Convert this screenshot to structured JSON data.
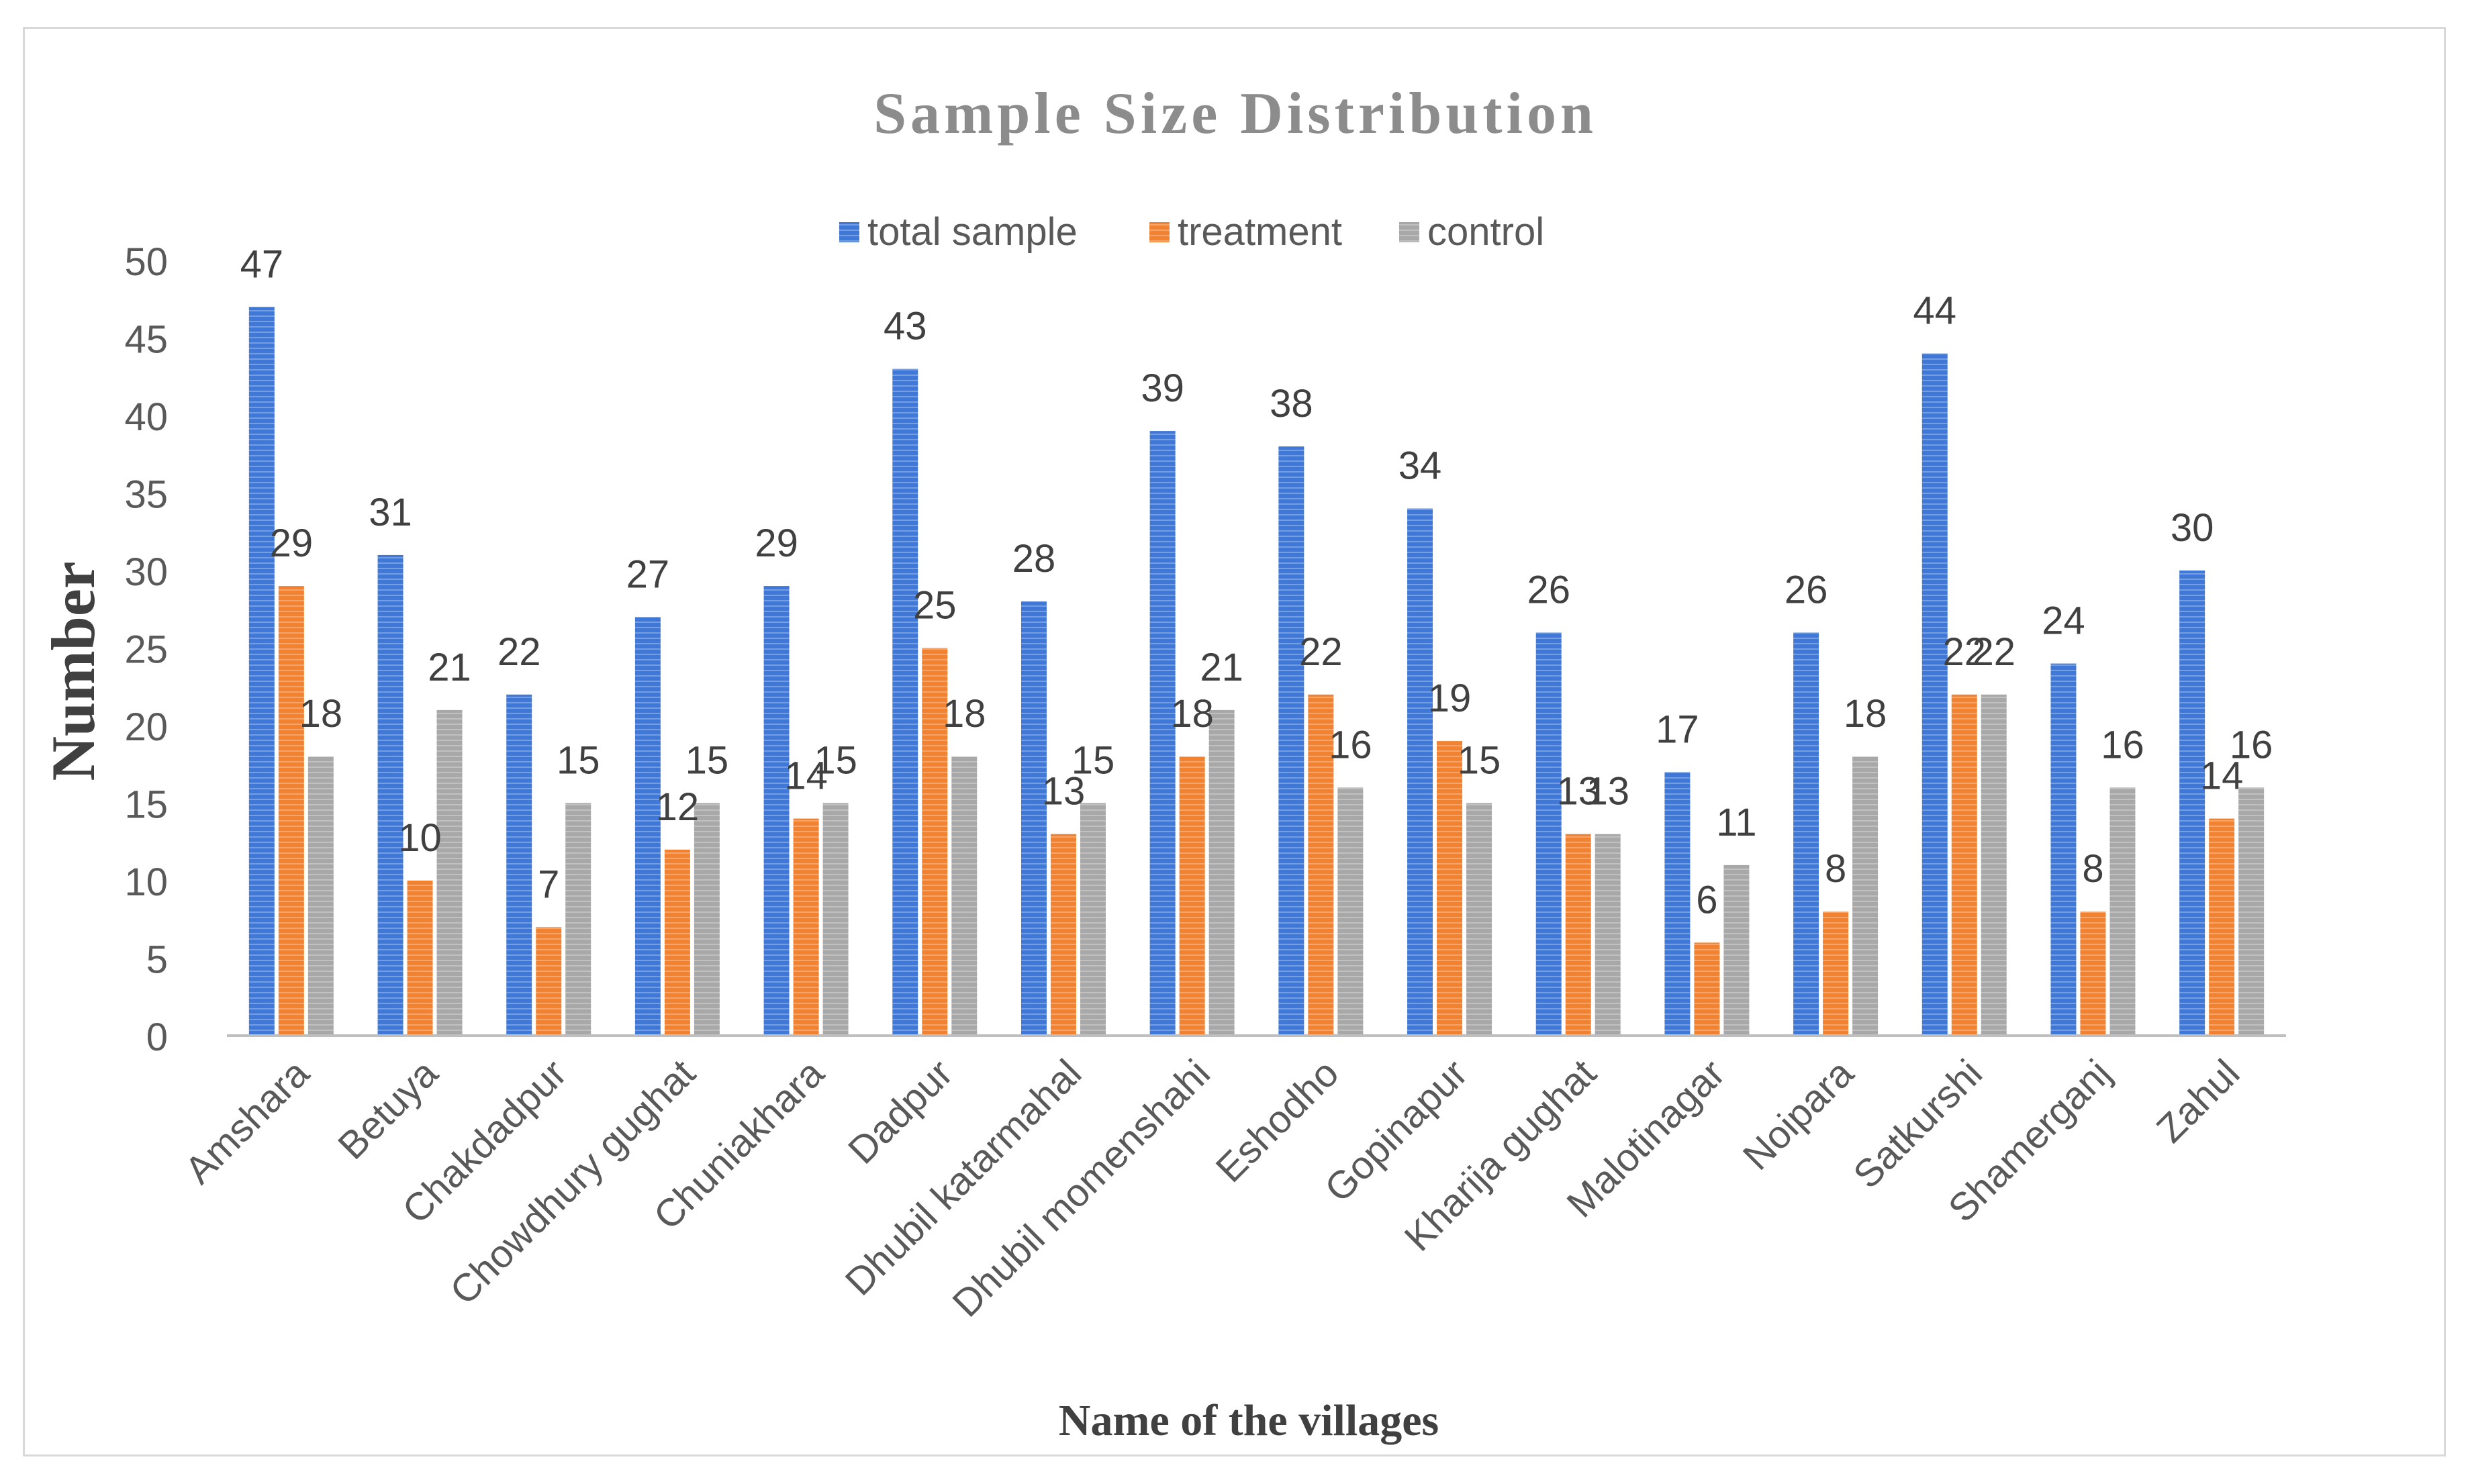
{
  "chart_data": {
    "type": "bar",
    "title": "Sample Size Distribution",
    "xlabel": "Name of the villages",
    "ylabel": "Number",
    "ylim": [
      0,
      50
    ],
    "yticks": [
      0,
      5,
      10,
      15,
      20,
      25,
      30,
      35,
      40,
      45,
      50
    ],
    "legend_position": "top-center",
    "grid": false,
    "categories": [
      "Amshara",
      "Betuya",
      "Chakdadpur",
      "Chowdhury gughat",
      "Chuniakhara",
      "Dadpur",
      "Dhubil katarmahal",
      "Dhubil momenshahi",
      "Eshodho",
      "Gopinapur",
      "Kharija gughat",
      "Malotinagar",
      "Noipara",
      "Satkurshi",
      "Shamerganj",
      "Zahul"
    ],
    "series": [
      {
        "name": "total sample",
        "color": "#3f78d6",
        "values": [
          47,
          31,
          22,
          27,
          29,
          43,
          28,
          39,
          38,
          34,
          26,
          17,
          26,
          44,
          24,
          30
        ]
      },
      {
        "name": "treatment",
        "color": "#f08232",
        "values": [
          29,
          10,
          7,
          12,
          14,
          25,
          13,
          18,
          22,
          19,
          13,
          6,
          8,
          22,
          8,
          14
        ]
      },
      {
        "name": "control",
        "color": "#a8a8a8",
        "values": [
          18,
          21,
          15,
          15,
          15,
          18,
          15,
          21,
          16,
          15,
          13,
          11,
          18,
          22,
          16,
          16
        ]
      }
    ]
  }
}
